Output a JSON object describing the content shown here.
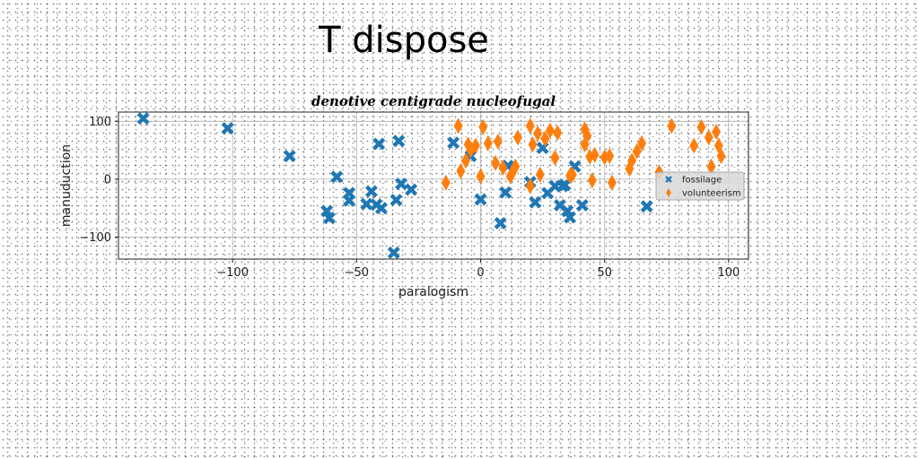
{
  "page": {
    "title": "T dispose"
  },
  "chart_data": {
    "type": "scatter",
    "title": "denotive centigrade nucleofugal",
    "xlabel": "paralogism",
    "ylabel": "manuduction",
    "xlim": [
      -146,
      108
    ],
    "ylim": [
      -138,
      116
    ],
    "xticks": [
      -100,
      -50,
      0,
      50,
      100
    ],
    "yticks": [
      -100,
      0,
      100
    ],
    "grid": true,
    "legend_position": "center-right",
    "series": [
      {
        "name": "fossilage",
        "color": "#1f77b4",
        "marker": "x",
        "points": [
          [
            -136,
            105
          ],
          [
            -102,
            88
          ],
          [
            -77,
            40
          ],
          [
            -62,
            -55
          ],
          [
            -61,
            -67
          ],
          [
            -58,
            4
          ],
          [
            -53,
            -24
          ],
          [
            -53,
            -37
          ],
          [
            -46,
            -43
          ],
          [
            -44,
            -21
          ],
          [
            -42,
            -44
          ],
          [
            -40,
            -50
          ],
          [
            -41,
            61
          ],
          [
            -35,
            -127
          ],
          [
            -34,
            -36
          ],
          [
            -33,
            66
          ],
          [
            -32,
            -8
          ],
          [
            -28,
            -18
          ],
          [
            -11,
            63
          ],
          [
            -4,
            40
          ],
          [
            0,
            -35
          ],
          [
            8,
            -76
          ],
          [
            10,
            -23
          ],
          [
            11,
            23
          ],
          [
            20,
            -5
          ],
          [
            22,
            -40
          ],
          [
            25,
            54
          ],
          [
            27,
            -24
          ],
          [
            30,
            -12
          ],
          [
            32,
            -45
          ],
          [
            33,
            -12
          ],
          [
            34,
            -10
          ],
          [
            35,
            -55
          ],
          [
            36,
            -66
          ],
          [
            38,
            22
          ],
          [
            41,
            -45
          ],
          [
            67,
            -47
          ]
        ]
      },
      {
        "name": "volunteerism",
        "color": "#ff7f0e",
        "marker": "d",
        "points": [
          [
            -14,
            -6
          ],
          [
            -9,
            92
          ],
          [
            -8,
            14
          ],
          [
            -6,
            32
          ],
          [
            -5,
            60
          ],
          [
            -4,
            50
          ],
          [
            -2,
            58
          ],
          [
            0,
            5
          ],
          [
            1,
            90
          ],
          [
            3,
            62
          ],
          [
            6,
            28
          ],
          [
            7,
            65
          ],
          [
            9,
            20
          ],
          [
            12,
            5
          ],
          [
            13,
            13
          ],
          [
            14,
            22
          ],
          [
            15,
            72
          ],
          [
            20,
            -12
          ],
          [
            20,
            92
          ],
          [
            21,
            60
          ],
          [
            23,
            79
          ],
          [
            24,
            8
          ],
          [
            26,
            70
          ],
          [
            28,
            84
          ],
          [
            30,
            37
          ],
          [
            31,
            80
          ],
          [
            36,
            6
          ],
          [
            37,
            8
          ],
          [
            42,
            60
          ],
          [
            42,
            86
          ],
          [
            43,
            75
          ],
          [
            44,
            39
          ],
          [
            45,
            -2
          ],
          [
            46,
            42
          ],
          [
            50,
            38
          ],
          [
            52,
            40
          ],
          [
            53,
            -6
          ],
          [
            60,
            18
          ],
          [
            61,
            32
          ],
          [
            63,
            48
          ],
          [
            65,
            62
          ],
          [
            72,
            12
          ],
          [
            77,
            92
          ],
          [
            86,
            58
          ],
          [
            89,
            90
          ],
          [
            92,
            72
          ],
          [
            93,
            22
          ],
          [
            95,
            82
          ],
          [
            96,
            58
          ],
          [
            97,
            40
          ]
        ]
      }
    ]
  }
}
